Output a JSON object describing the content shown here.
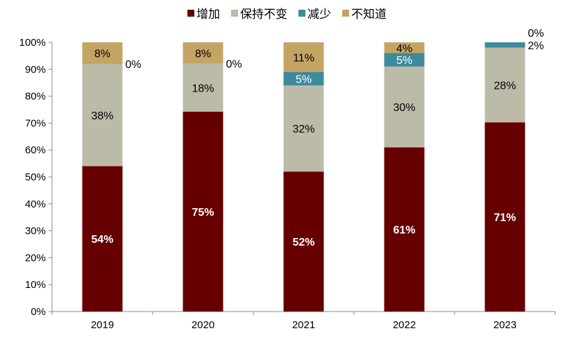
{
  "chart_data": {
    "type": "bar",
    "stacked": true,
    "categories": [
      "2019",
      "2020",
      "2021",
      "2022",
      "2023"
    ],
    "series": [
      {
        "name": "增加",
        "color": "#660000",
        "values": [
          54,
          75,
          52,
          61,
          71
        ]
      },
      {
        "name": "保持不变",
        "color": "#BCBBA8",
        "values": [
          38,
          18,
          32,
          30,
          28
        ]
      },
      {
        "name": "减少",
        "color": "#3E8A9C",
        "values": [
          0,
          0,
          5,
          5,
          2
        ]
      },
      {
        "name": "不知道",
        "color": "#C4A464",
        "values": [
          8,
          8,
          11,
          4,
          0
        ]
      }
    ],
    "ylim": [
      0,
      100
    ],
    "yticks": [
      "0%",
      "10%",
      "20%",
      "30%",
      "40%",
      "50%",
      "60%",
      "70%",
      "80%",
      "90%",
      "100%"
    ],
    "legend": "top",
    "grid": false,
    "xlabel": "",
    "ylabel": "",
    "title": ""
  }
}
